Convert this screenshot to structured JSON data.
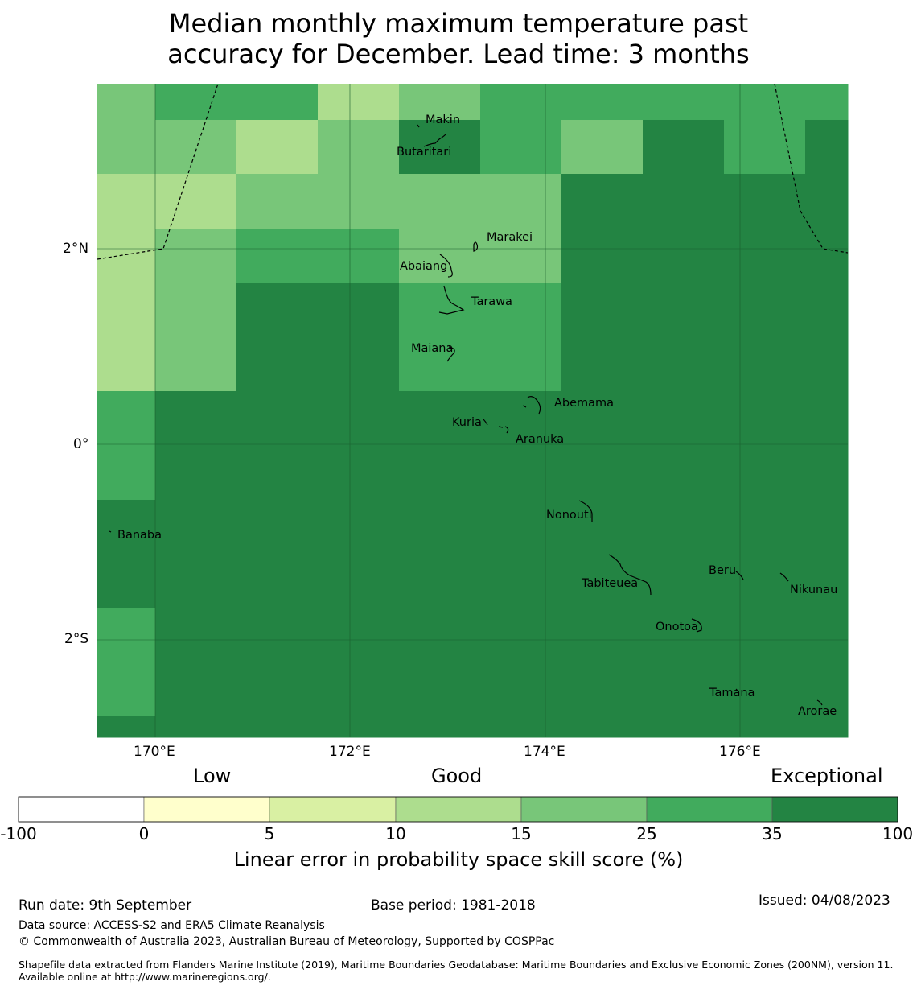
{
  "title_line1": "Median monthly maximum temperature past",
  "title_line2": "accuracy for December. Lead time: 3 months",
  "colors": {
    "b15_25": "#78c679",
    "b25_35": "#41ab5d",
    "b35_100": "#238443",
    "b10_15": "#addd8e",
    "b5_10": "#d9f0a3",
    "b0_5": "#ffffcc",
    "bneg": "#ffffff"
  },
  "map": {
    "lon_range": [
      169.4,
      177.1
    ],
    "lat_range": [
      -2.9,
      3.6
    ],
    "lon_ticks": [
      {
        "value": 170,
        "label": "170°E"
      },
      {
        "value": 172,
        "label": "172°E"
      },
      {
        "value": 174,
        "label": "174°E"
      },
      {
        "value": 176,
        "label": "176°E"
      }
    ],
    "lat_ticks": [
      {
        "value": 2,
        "label": "2°N"
      },
      {
        "value": 0,
        "label": "0°"
      },
      {
        "value": -2,
        "label": "2°S"
      }
    ],
    "islands": [
      {
        "name": "Makin",
        "lon": 172.99,
        "lat": 3.16
      },
      {
        "name": "Butaritari",
        "lon": 172.8,
        "lat": 3.05
      },
      {
        "name": "Marakei",
        "lon": 173.28,
        "lat": 2.0
      },
      {
        "name": "Abaiang",
        "lon": 173.0,
        "lat": 1.85
      },
      {
        "name": "Tarawa",
        "lon": 173.0,
        "lat": 1.4
      },
      {
        "name": "Maiana",
        "lon": 173.0,
        "lat": 0.95
      },
      {
        "name": "Abemama",
        "lon": 173.85,
        "lat": 0.4
      },
      {
        "name": "Kuria",
        "lon": 173.4,
        "lat": 0.22
      },
      {
        "name": "Aranuka",
        "lon": 173.6,
        "lat": 0.17
      },
      {
        "name": "Banaba",
        "lon": 169.53,
        "lat": -0.87
      },
      {
        "name": "Nonouti",
        "lon": 174.4,
        "lat": -0.65
      },
      {
        "name": "Tabiteuea",
        "lon": 174.85,
        "lat": -1.3
      },
      {
        "name": "Beru",
        "lon": 176.0,
        "lat": -1.33
      },
      {
        "name": "Nikunau",
        "lon": 176.45,
        "lat": -1.37
      },
      {
        "name": "Onotoa",
        "lon": 175.55,
        "lat": -1.8
      },
      {
        "name": "Tamana",
        "lon": 175.98,
        "lat": -2.5
      },
      {
        "name": "Arorae",
        "lon": 176.82,
        "lat": -2.65
      }
    ]
  },
  "colorbar": {
    "categories": [
      "Low",
      "Good",
      "Exceptional"
    ],
    "ticks": [
      "-100",
      "0",
      "5",
      "10",
      "15",
      "25",
      "35",
      "100"
    ],
    "title": "Linear error in probability space skill score (%)"
  },
  "footer": {
    "run_date": "Run date: 9th September",
    "base_period": "Base period: 1981-2018",
    "issued": "Issued: 04/08/2023",
    "data_source": "Data source: ACCESS-S2 and ERA5 Climate Reanalysis",
    "copyright": "© Commonwealth of Australia 2023, Australian Bureau of Meteorology, Supported by COSPPac",
    "shapefile": "Shapefile data extracted from Flanders Marine Institute (2019), Maritime Boundaries Geodatabase: Maritime Boundaries and Exclusive Economic Zones (200NM), version 11. Available online at http://www.marineregions.org/."
  }
}
